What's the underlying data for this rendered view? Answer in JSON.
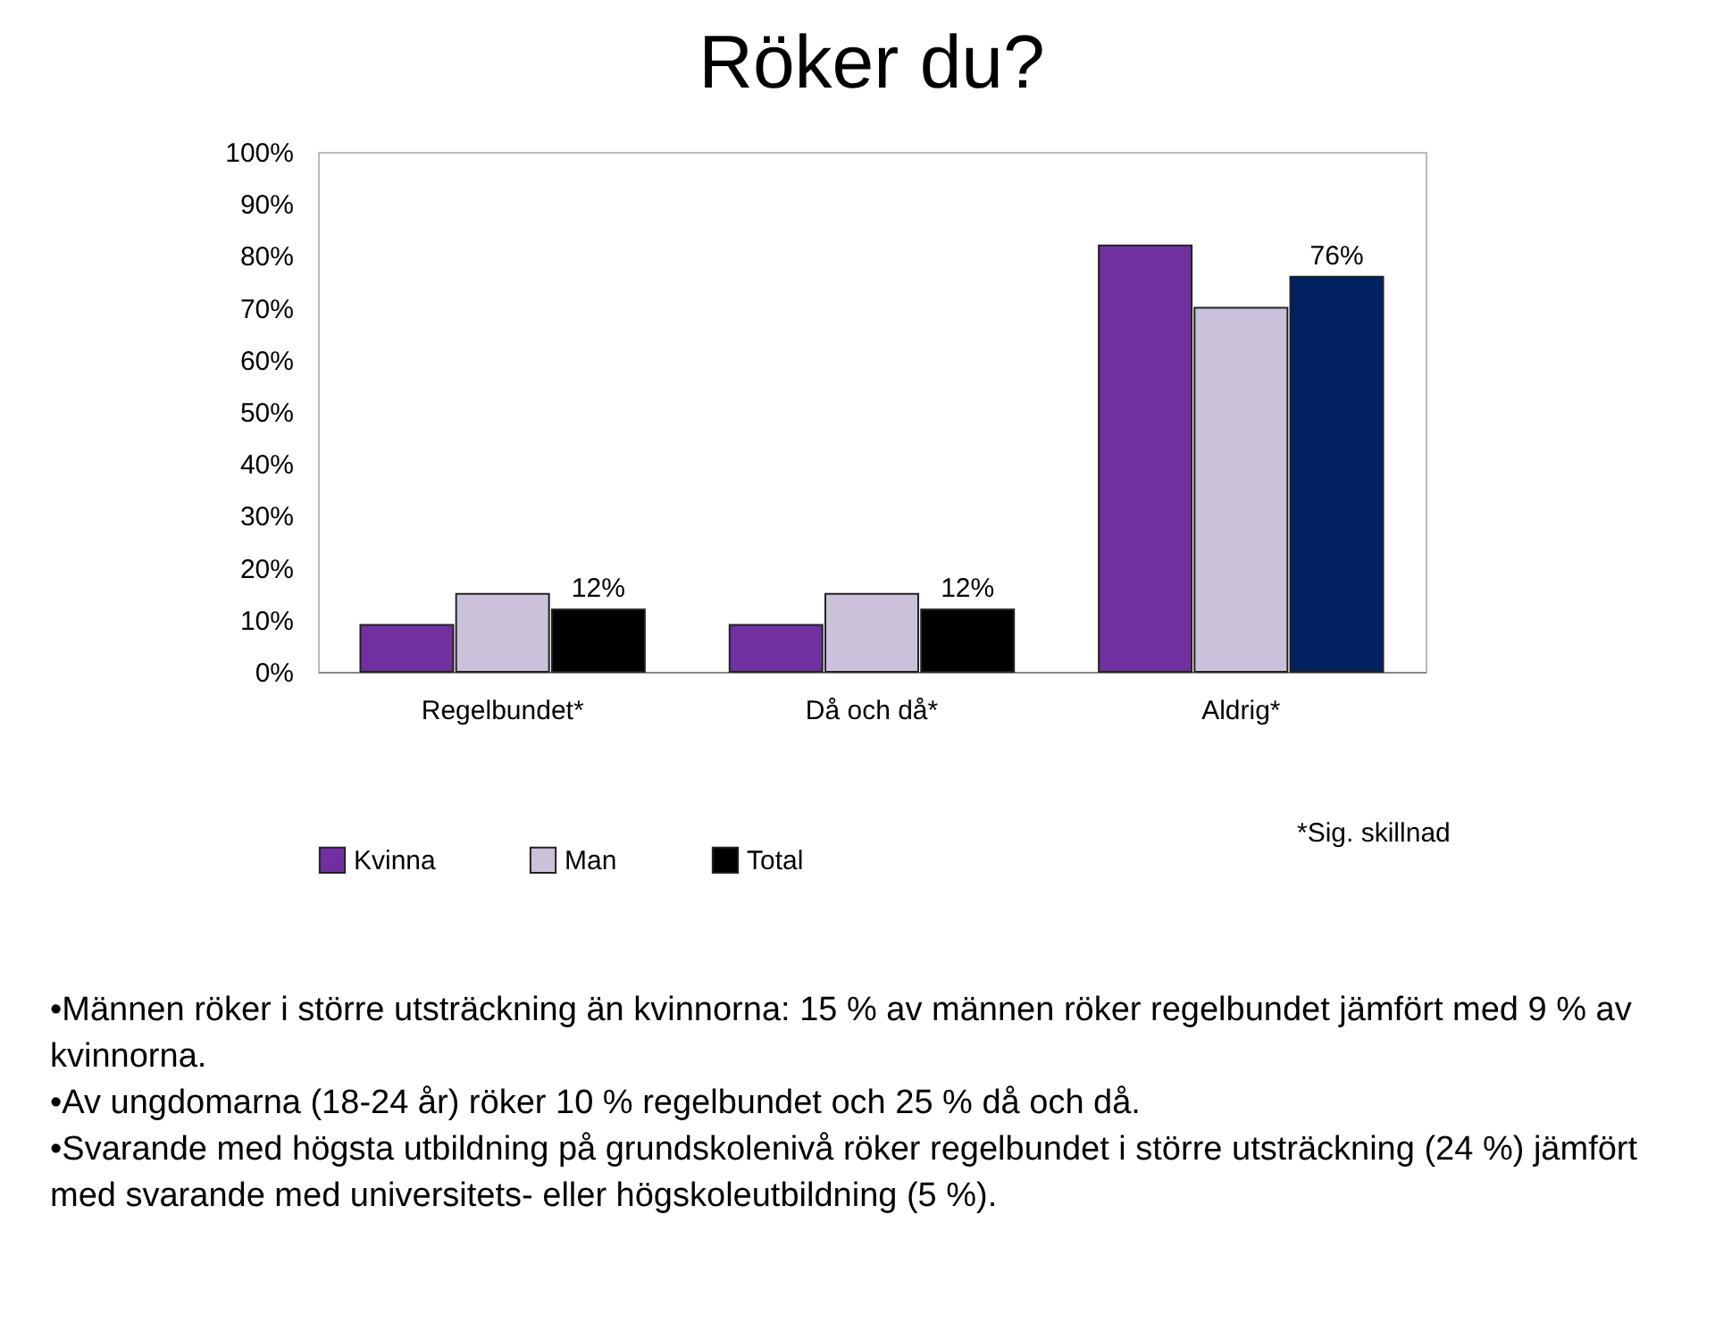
{
  "chart_data": {
    "type": "bar",
    "title": "Röker du?",
    "categories": [
      "Regelbundet*",
      "Då och då*",
      "Aldrig*"
    ],
    "series": [
      {
        "name": "Kvinna",
        "color": "#7030a0",
        "values": [
          9,
          9,
          82
        ]
      },
      {
        "name": "Man",
        "color": "#ccc1da",
        "values": [
          15,
          15,
          70
        ]
      },
      {
        "name": "Total",
        "color": "#000000",
        "colors": [
          "#000000",
          "#000000",
          "#002060"
        ],
        "values": [
          12,
          12,
          76
        ],
        "value_labels": [
          "12%",
          "12%",
          "76%"
        ]
      }
    ],
    "ylim": [
      0,
      100
    ],
    "yticks": [
      {
        "value": 0,
        "label": "0%"
      },
      {
        "value": 10,
        "label": "10%"
      },
      {
        "value": 20,
        "label": "20%"
      },
      {
        "value": 30,
        "label": "30%"
      },
      {
        "value": 40,
        "label": "40%"
      },
      {
        "value": 50,
        "label": "50%"
      },
      {
        "value": 60,
        "label": "60%"
      },
      {
        "value": 70,
        "label": "70%"
      },
      {
        "value": 80,
        "label": "80%"
      },
      {
        "value": 90,
        "label": "90%"
      },
      {
        "value": 100,
        "label": "100%"
      }
    ],
    "grid": false,
    "legend": "bottom",
    "annotations": [
      "*Sig. skillnad",
      "•Männen röker i större utsträckning än kvinnorna: 15 % av männen röker regelbundet jämfört med 9 % av kvinnorna.",
      "•Av ungdomarna (18-24 år) röker 10 % regelbundet och 25 % då och då.",
      "•Svarande med högsta utbildning på grundskolenivå röker regelbundet i större utsträckning (24 %) jämfört med svarande med universitets- eller högskoleutbildning (5 %)."
    ]
  }
}
